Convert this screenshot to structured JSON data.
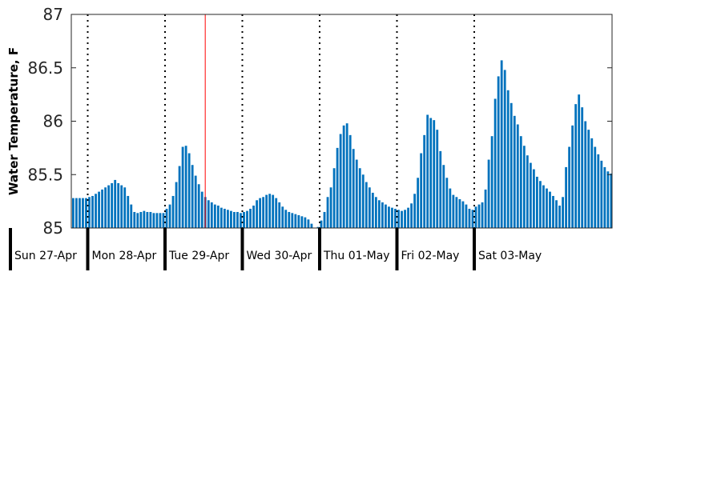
{
  "chart_data": {
    "type": "bar",
    "title": "",
    "xlabel": "",
    "ylabel": "Water Temperature, F",
    "ylim": [
      85,
      87
    ],
    "yticks": [
      "85",
      "85.5",
      "86",
      "86.5",
      "87"
    ],
    "bar_color": "#0072BD",
    "day_separator_color": "#000000",
    "now_marker_color": "#FF0000",
    "days": [
      "Sun 27-Apr",
      "Mon 28-Apr",
      "Tue 29-Apr",
      "Wed 30-Apr",
      "Thu 01-May",
      "Fri 02-May",
      "Sat 03-May"
    ],
    "interval_hours": 1,
    "start": "Sun 27-Apr 00:00",
    "now_marker_day_position": 2.52,
    "values": [
      85.27,
      85.29,
      85.33,
      85.38,
      85.42,
      85.45,
      85.44,
      85.4,
      85.37,
      85.34,
      85.31,
      85.29,
      85.28,
      85.28,
      85.28,
      85.28,
      85.28,
      85.28,
      85.28,
      85.28,
      85.28,
      85.28,
      85.28,
      85.28,
      85.29,
      85.3,
      85.32,
      85.34,
      85.36,
      85.38,
      85.4,
      85.42,
      85.45,
      85.42,
      85.4,
      85.38,
      85.3,
      85.22,
      85.15,
      85.14,
      85.15,
      85.16,
      85.15,
      85.15,
      85.14,
      85.14,
      85.14,
      85.14,
      85.18,
      85.22,
      85.3,
      85.43,
      85.58,
      85.76,
      85.77,
      85.7,
      85.59,
      85.49,
      85.41,
      85.34,
      85.29,
      85.26,
      85.24,
      85.22,
      85.21,
      85.19,
      85.18,
      85.17,
      85.16,
      85.15,
      85.15,
      85.14,
      85.15,
      85.16,
      85.18,
      85.21,
      85.26,
      85.28,
      85.29,
      85.31,
      85.32,
      85.31,
      85.28,
      85.24,
      85.2,
      85.17,
      85.15,
      85.14,
      85.13,
      85.12,
      85.11,
      85.1,
      85.08,
      85.04,
      85.0,
      85.01,
      85.07,
      85.15,
      85.29,
      85.38,
      85.56,
      85.75,
      85.88,
      85.96,
      85.98,
      85.87,
      85.74,
      85.64,
      85.56,
      85.5,
      85.43,
      85.38,
      85.33,
      85.29,
      85.26,
      85.24,
      85.22,
      85.2,
      85.19,
      85.18,
      85.17,
      85.16,
      85.17,
      85.19,
      85.23,
      85.32,
      85.47,
      85.7,
      85.87,
      86.06,
      86.03,
      86.01,
      85.92,
      85.72,
      85.59,
      85.47,
      85.37,
      85.31,
      85.29,
      85.27,
      85.25,
      85.22,
      85.18,
      85.17,
      85.2,
      85.22,
      85.24,
      85.36,
      85.64,
      85.86,
      86.21,
      86.42,
      86.57,
      86.48,
      86.29,
      86.17,
      86.05,
      85.97,
      85.86,
      85.77,
      85.68,
      85.61,
      85.55,
      85.48,
      85.44,
      85.4,
      85.37,
      85.34,
      85.3,
      85.26,
      85.21,
      85.29,
      85.57,
      85.76,
      85.96,
      86.16,
      86.25,
      86.13,
      86.0,
      85.92,
      85.84,
      85.76,
      85.69,
      85.63,
      85.57,
      85.53,
      85.51,
      85.49,
      85.47,
      85.46,
      85.44,
      85.43,
      85.41,
      85.4,
      85.38,
      85.37,
      85.36,
      85.43
    ]
  }
}
